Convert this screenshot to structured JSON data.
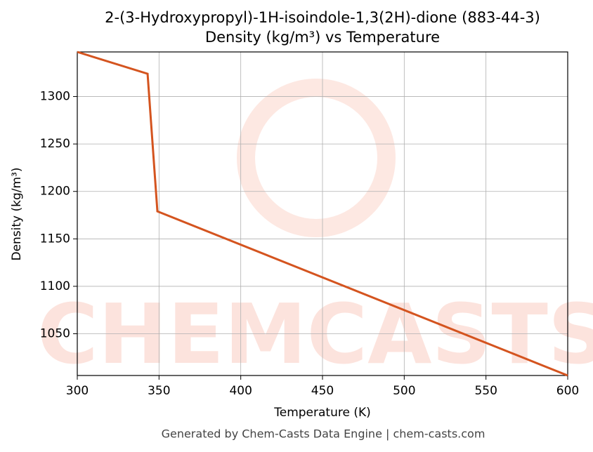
{
  "chart_data": {
    "type": "line",
    "title": "2-(3-Hydroxypropyl)-1H-isoindole-1,3(2H)-dione (883-44-3)",
    "subtitle": "Density (kg/m³) vs Temperature",
    "x_label": "Temperature (K)",
    "y_label": "Density (kg/m³)",
    "footer": "Generated by Chem-Casts Data Engine | chem-casts.com",
    "watermark": "CHEMCASTS",
    "x": [
      300,
      343,
      349,
      600
    ],
    "series": [
      {
        "name": "Density",
        "color": "#d4541f",
        "values": [
          1347,
          1324,
          1179,
          1006
        ]
      }
    ],
    "xlim": [
      300,
      600
    ],
    "xticks": [
      300,
      350,
      400,
      450,
      500,
      550,
      600
    ],
    "ylim": [
      1006,
      1347
    ],
    "yticks": [
      1050,
      1100,
      1150,
      1200,
      1250,
      1300
    ],
    "grid": true
  }
}
